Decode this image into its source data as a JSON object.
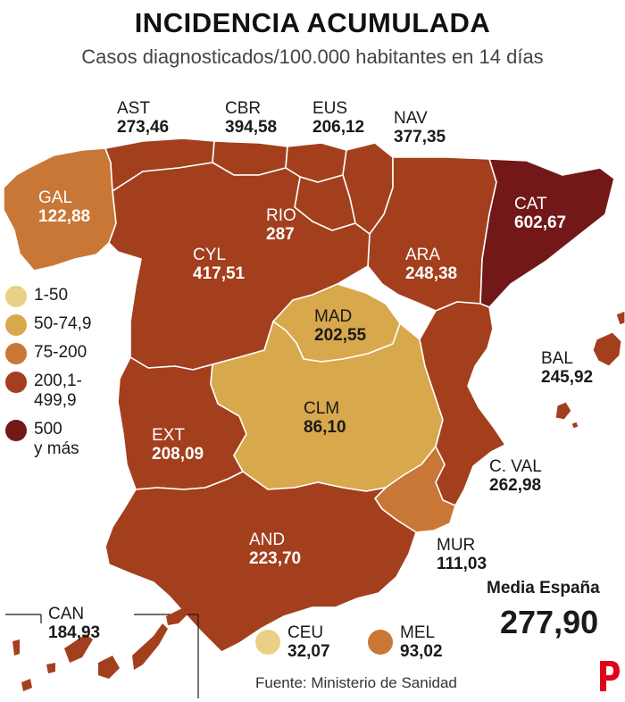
{
  "title": "INCIDENCIA ACUMULADA",
  "subtitle": "Casos diagnosticados/100.000 habitantes en 14 días",
  "colors": {
    "c1": "#ead084",
    "c2": "#d8a84c",
    "c3": "#c97736",
    "c4": "#a33f1d",
    "c5": "#721819"
  },
  "legend": [
    {
      "label": "1-50",
      "color": "#ead084"
    },
    {
      "label": "50-74,9",
      "color": "#d8a84c"
    },
    {
      "label": "75-200",
      "color": "#c97736"
    },
    {
      "label": "200,1-\n499,9",
      "label_line1": "200,1-",
      "label_line2": "499,9",
      "color": "#a33f1d"
    },
    {
      "label": "500 y más",
      "label_line1": "500",
      "label_line2": "y más",
      "color": "#721819"
    }
  ],
  "regions": {
    "AST": {
      "code": "AST",
      "value": "273,46"
    },
    "CBR": {
      "code": "CBR",
      "value": "394,58"
    },
    "EUS": {
      "code": "EUS",
      "value": "206,12"
    },
    "NAV": {
      "code": "NAV",
      "value": "377,35"
    },
    "GAL": {
      "code": "GAL",
      "value": "122,88"
    },
    "CAT": {
      "code": "CAT",
      "value": "602,67"
    },
    "RIO": {
      "code": "RIO",
      "value": "287"
    },
    "CYL": {
      "code": "CYL",
      "value": "417,51"
    },
    "ARA": {
      "code": "ARA",
      "value": "248,38"
    },
    "MAD": {
      "code": "MAD",
      "value": "202,55"
    },
    "BAL": {
      "code": "BAL",
      "value": "245,92"
    },
    "CLM": {
      "code": "CLM",
      "value": "86,10"
    },
    "EXT": {
      "code": "EXT",
      "value": "208,09"
    },
    "CVAL": {
      "code": "C. VAL",
      "value": "262,98"
    },
    "AND": {
      "code": "AND",
      "value": "223,70"
    },
    "MUR": {
      "code": "MUR",
      "value": "111,03"
    },
    "CAN": {
      "code": "CAN",
      "value": "184,93"
    },
    "CEU": {
      "code": "CEU",
      "value": "32,07"
    },
    "MEL": {
      "code": "MEL",
      "value": "93,02"
    }
  },
  "media": {
    "label": "Media España",
    "value": "277,90"
  },
  "source": "Fuente: Ministerio de Sanidad"
}
